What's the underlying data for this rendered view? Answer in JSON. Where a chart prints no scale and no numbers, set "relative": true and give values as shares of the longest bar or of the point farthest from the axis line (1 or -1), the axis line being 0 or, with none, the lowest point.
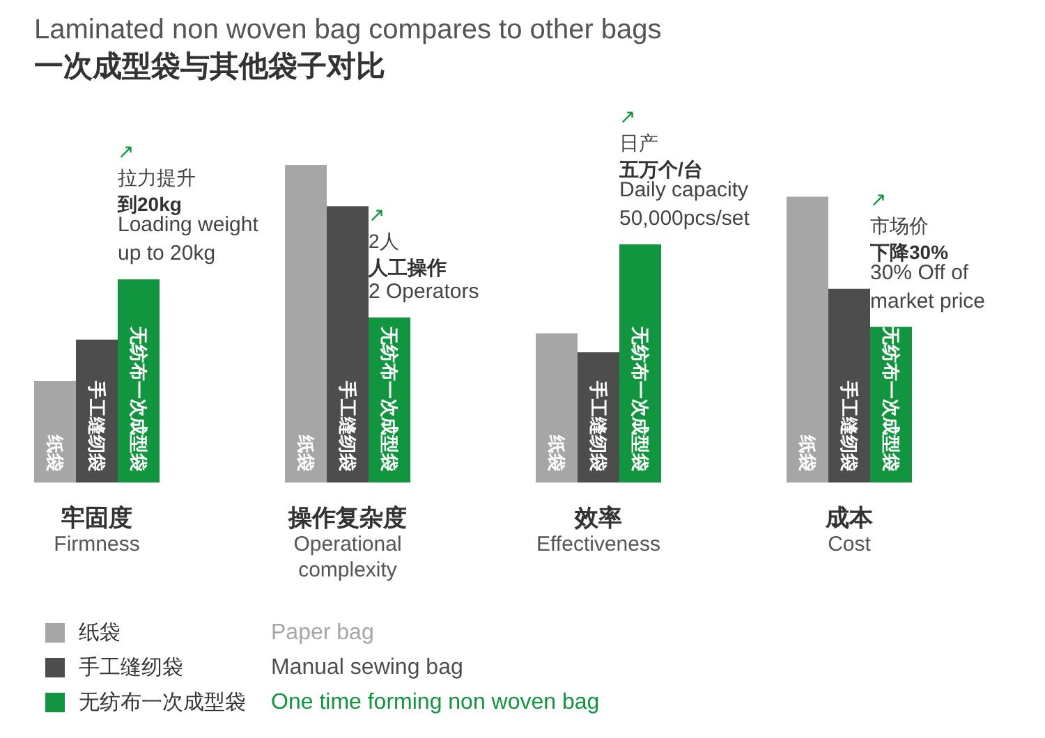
{
  "chart_data": {
    "type": "bar",
    "title": "Laminated non woven bag compares to other bags",
    "subtitle": "一次成型袋与其他袋子对比",
    "relative": true,
    "legend": "bottom left",
    "categories": [
      "牢固度\nFirmness",
      "操作复杂度\nOperational\ncomplexity",
      "效率\nEffectiveness",
      "成本\nCost"
    ],
    "series": [
      {
        "name": "纸袋",
        "color": "#a6a6a6",
        "values": [
          0.32,
          1.0,
          0.47,
          0.9
        ]
      },
      {
        "name": "手工缝纫袋",
        "color": "#4d4d4d",
        "values": [
          0.45,
          0.87,
          0.41,
          0.61
        ]
      },
      {
        "name": "无纺布一次成型袋",
        "color": "#12953f",
        "values": [
          0.64,
          0.52,
          0.75,
          0.49
        ]
      }
    ],
    "annotations": [
      "↗",
      "拉力提升",
      "到20kg",
      "Loading weight\nup to 20kg",
      "↗",
      "2人",
      "人工操作",
      "2 Operators",
      "↗",
      "日产",
      "五万个/台",
      "Daily capacity\n50,000pcs/set",
      "↗",
      "市场价",
      "下降30%",
      "30% Off of\nmarket price",
      "Paper bag",
      "Manual sewing bag",
      "One time forming non woven bag"
    ]
  }
}
